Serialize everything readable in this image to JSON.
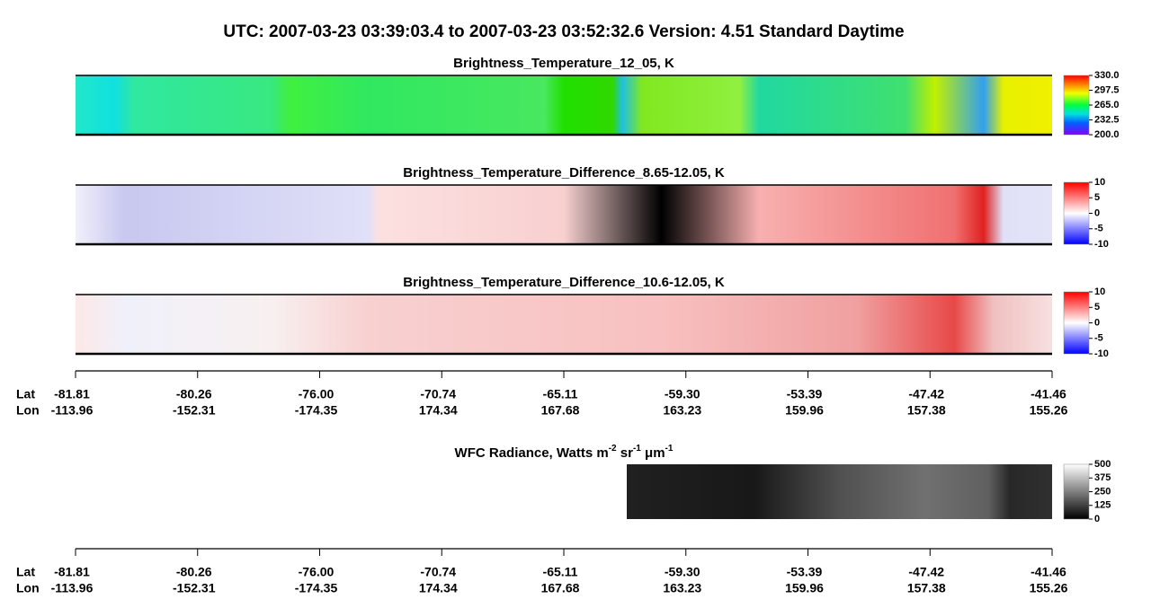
{
  "title": "UTC:  2007-03-23   03:39:03.4  to  2007-03-23   03:52:32.6    Version: 4.51  Standard Daytime",
  "panels": [
    {
      "title": "Brightness_Temperature_12_05, K",
      "colorbar": [
        "330.0",
        "297.5",
        "265.0",
        "232.5",
        "200.0"
      ]
    },
    {
      "title": "Brightness_Temperature_Difference_8.65-12.05, K",
      "colorbar": [
        "10",
        "5",
        "0",
        "-5",
        "-10"
      ]
    },
    {
      "title": "Brightness_Temperature_Difference_10.6-12.05, K",
      "colorbar": [
        "10",
        "5",
        "0",
        "-5",
        "-10"
      ]
    }
  ],
  "wfc": {
    "title_parts": [
      "WFC Radiance, Watts m",
      "-2",
      " sr",
      "-1",
      " μm",
      "-1"
    ],
    "colorbar": [
      "500",
      "375",
      "250",
      "125",
      "0"
    ]
  },
  "axes": [
    {
      "lat_label": "Lat",
      "lon_label": "Lon",
      "lat": [
        "-81.81",
        "-80.26",
        "-76.00",
        "-70.74",
        "-65.11",
        "-59.30",
        "-53.39",
        "-47.42",
        "-41.46"
      ],
      "lon": [
        "-113.96",
        "-152.31",
        "-174.35",
        "174.34",
        "167.68",
        "163.23",
        "159.96",
        "157.38",
        "155.26"
      ]
    },
    {
      "lat_label": "Lat",
      "lon_label": "Lon",
      "lat": [
        "-81.81",
        "-80.26",
        "-76.00",
        "-70.74",
        "-65.11",
        "-59.30",
        "-53.39",
        "-47.42",
        "-41.46"
      ],
      "lon": [
        "-113.96",
        "-152.31",
        "-174.35",
        "174.34",
        "167.68",
        "163.23",
        "159.96",
        "157.38",
        "155.26"
      ]
    }
  ]
}
